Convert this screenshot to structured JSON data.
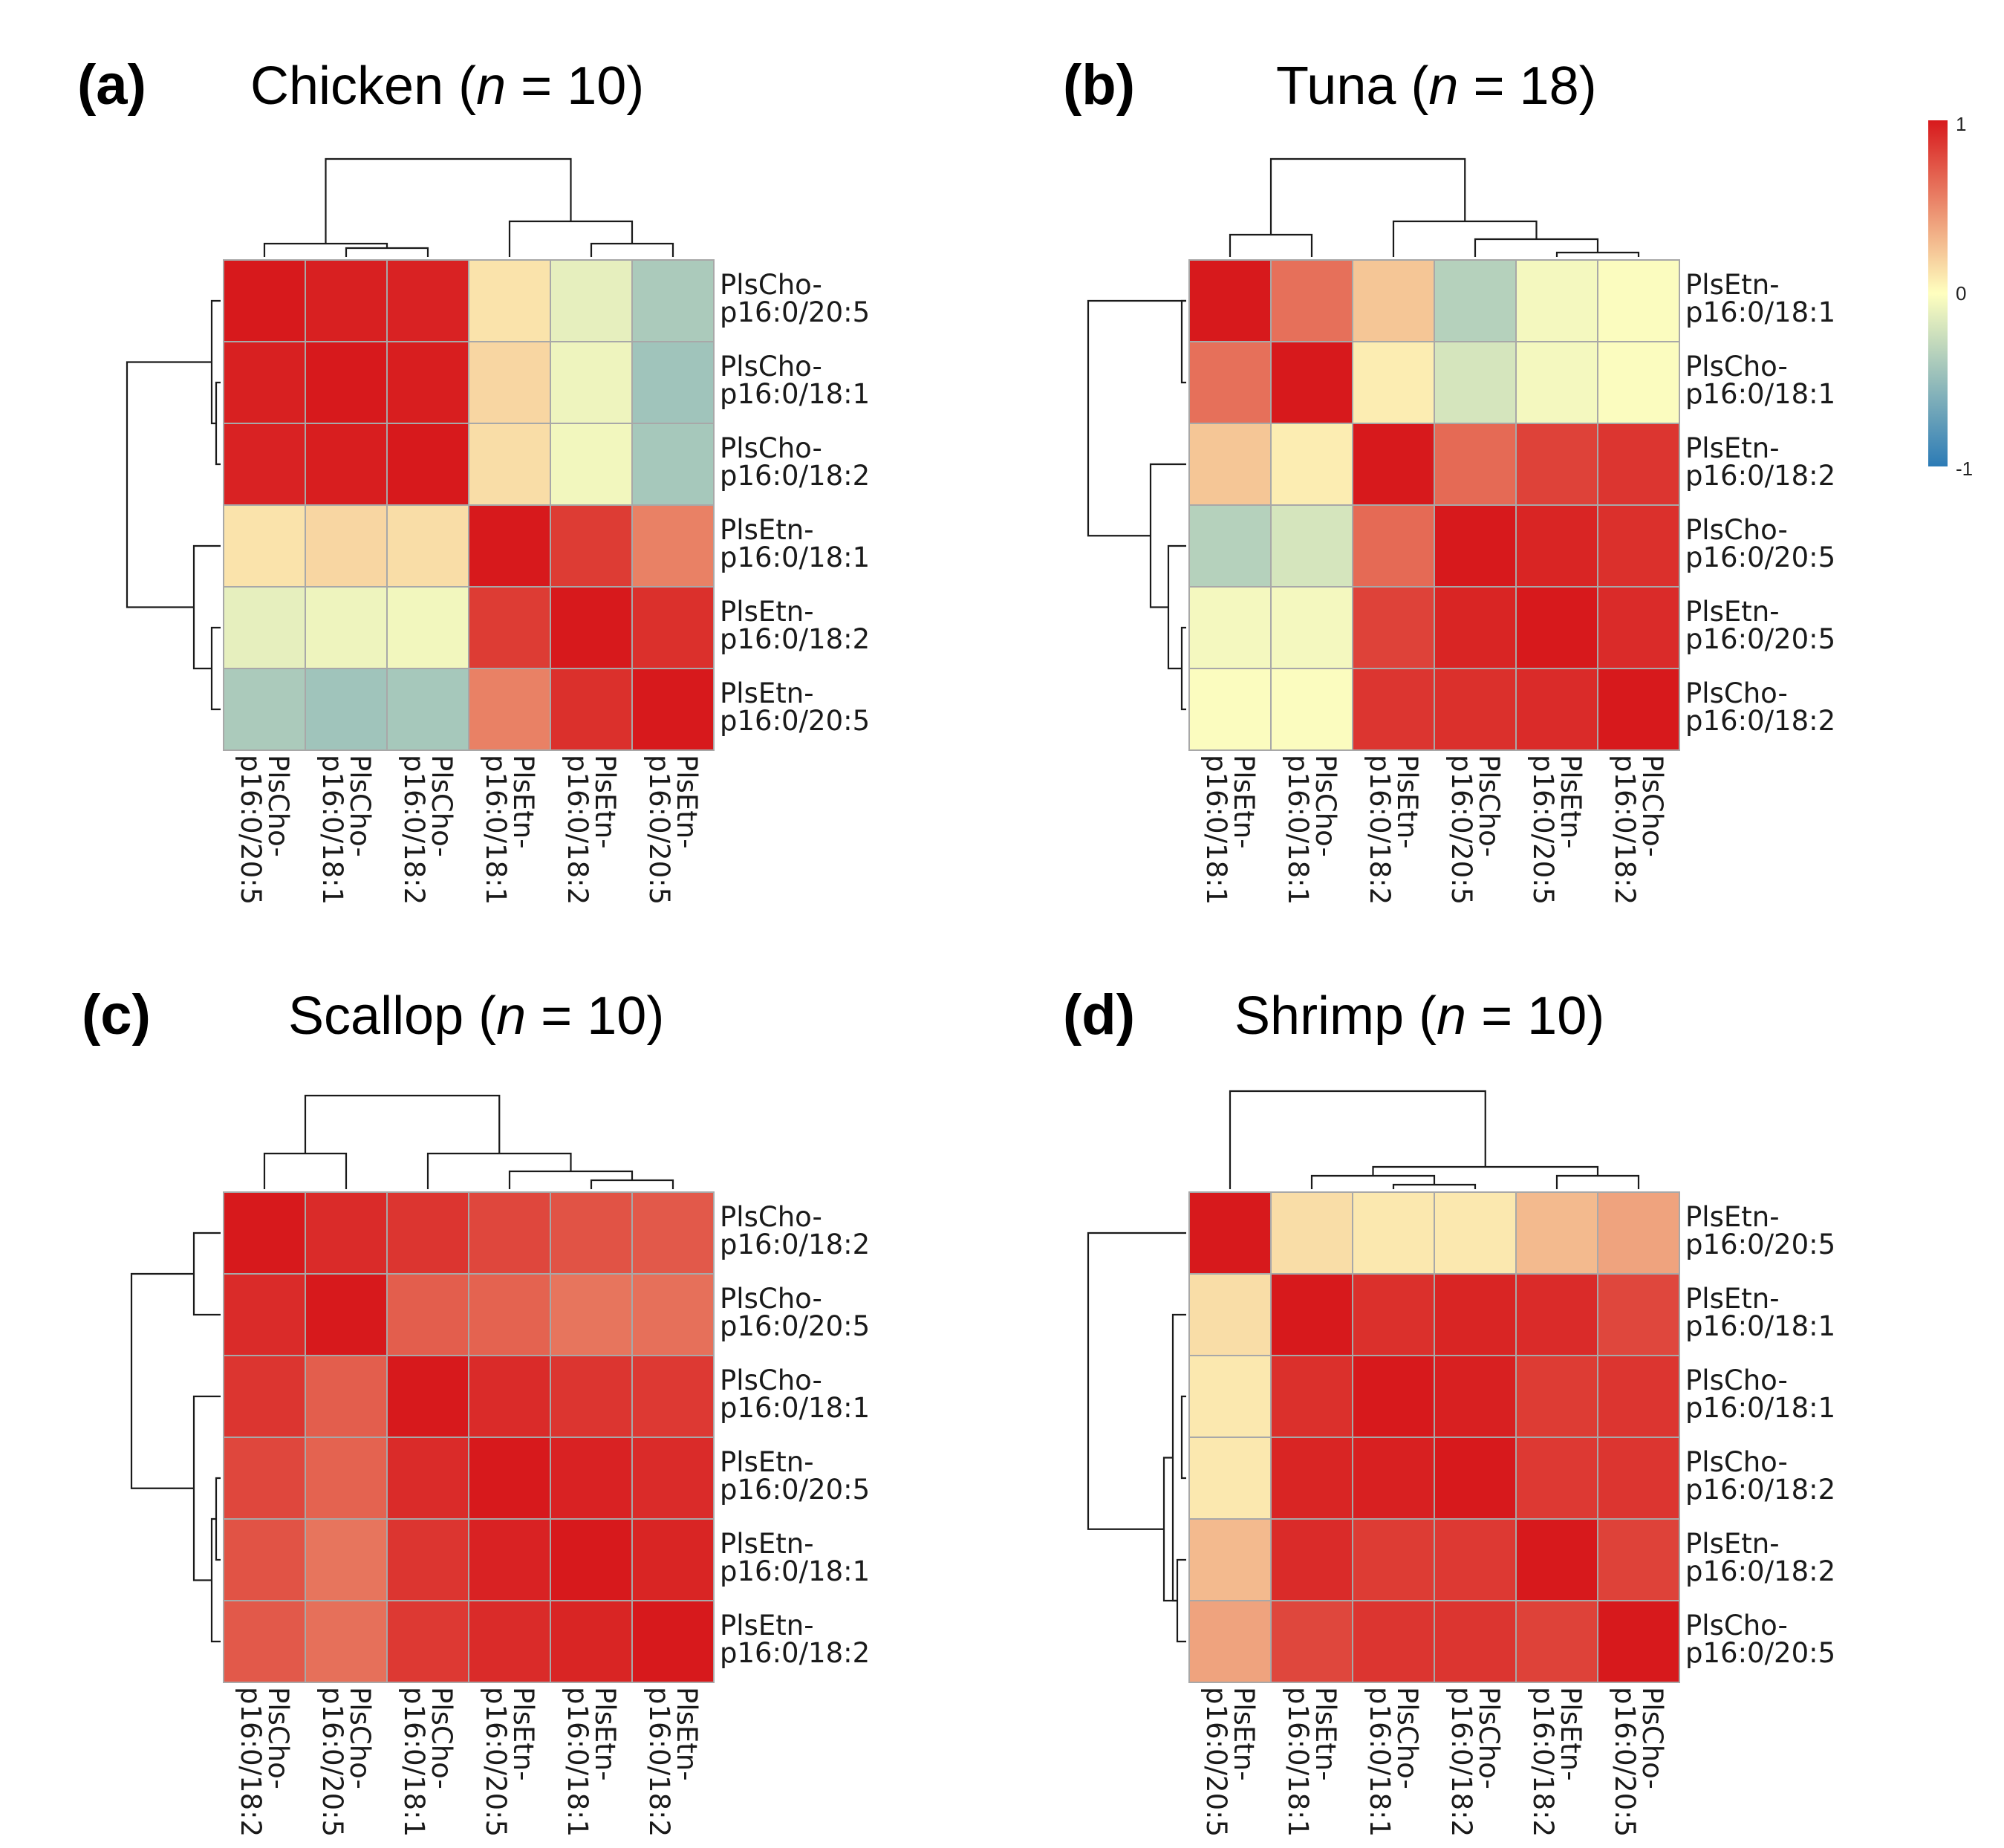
{
  "figure": {
    "colorbar": {
      "ticks": [
        "1",
        "0",
        "-1"
      ],
      "min": -1,
      "max": 1,
      "low_color": "#2c7bb6",
      "mid_color": "#ffffbf",
      "high_color": "#d7191c"
    }
  },
  "chart_data": [
    {
      "type": "heatmap",
      "panel": "(a)",
      "title": {
        "species": "Chicken",
        "n_prefix": " (",
        "n_italic": "n",
        "n_suffix": " = 10)"
      },
      "row_labels": [
        [
          "PlsCho-",
          "p16:0/20:5"
        ],
        [
          "PlsCho-",
          "p16:0/18:1"
        ],
        [
          "PlsCho-",
          "p16:0/18:2"
        ],
        [
          "PlsEtn-",
          "p16:0/18:1"
        ],
        [
          "PlsEtn-",
          "p16:0/18:2"
        ],
        [
          "PlsEtn-",
          "p16:0/20:5"
        ]
      ],
      "col_labels": [
        [
          "PlsCho-",
          "p16:0/20:5"
        ],
        [
          "PlsCho-",
          "p16:0/18:1"
        ],
        [
          "PlsCho-",
          "p16:0/18:2"
        ],
        [
          "PlsEtn-",
          "p16:0/18:1"
        ],
        [
          "PlsEtn-",
          "p16:0/18:2"
        ],
        [
          "PlsEtn-",
          "p16:0/20:5"
        ]
      ],
      "values": [
        [
          1.0,
          0.97,
          0.96,
          0.12,
          -0.12,
          -0.4
        ],
        [
          0.97,
          1.0,
          0.98,
          0.18,
          -0.08,
          -0.45
        ],
        [
          0.96,
          0.98,
          1.0,
          0.15,
          -0.06,
          -0.42
        ],
        [
          0.12,
          0.18,
          0.15,
          1.0,
          0.85,
          0.55
        ],
        [
          -0.12,
          -0.08,
          -0.06,
          0.85,
          1.0,
          0.9
        ],
        [
          -0.4,
          -0.45,
          -0.42,
          0.55,
          0.9,
          1.0
        ]
      ]
    },
    {
      "type": "heatmap",
      "panel": "(b)",
      "title": {
        "species": "Tuna",
        "n_prefix": " (",
        "n_italic": "n",
        "n_suffix": " = 18)"
      },
      "row_labels": [
        [
          "PlsEtn-",
          "p16:0/18:1"
        ],
        [
          "PlsCho-",
          "p16:0/18:1"
        ],
        [
          "PlsEtn-",
          "p16:0/18:2"
        ],
        [
          "PlsCho-",
          "p16:0/20:5"
        ],
        [
          "PlsEtn-",
          "p16:0/20:5"
        ],
        [
          "PlsCho-",
          "p16:0/18:2"
        ]
      ],
      "col_labels": [
        [
          "PlsEtn-",
          "p16:0/18:1"
        ],
        [
          "PlsCho-",
          "p16:0/18:1"
        ],
        [
          "PlsEtn-",
          "p16:0/18:2"
        ],
        [
          "PlsCho-",
          "p16:0/20:5"
        ],
        [
          "PlsEtn-",
          "p16:0/20:5"
        ],
        [
          "PlsCho-",
          "p16:0/18:2"
        ]
      ],
      "values": [
        [
          1.0,
          0.62,
          0.25,
          -0.35,
          -0.05,
          -0.02
        ],
        [
          0.62,
          1.0,
          0.08,
          -0.2,
          -0.05,
          -0.02
        ],
        [
          0.25,
          0.08,
          1.0,
          0.65,
          0.82,
          0.88
        ],
        [
          -0.35,
          -0.2,
          0.65,
          1.0,
          0.95,
          0.9
        ],
        [
          -0.05,
          -0.05,
          0.82,
          0.95,
          1.0,
          0.92
        ],
        [
          -0.02,
          -0.02,
          0.88,
          0.9,
          0.92,
          1.0
        ]
      ]
    },
    {
      "type": "heatmap",
      "panel": "(c)",
      "title": {
        "species": "Scallop",
        "n_prefix": " (",
        "n_italic": "n",
        "n_suffix": " = 10)"
      },
      "row_labels": [
        [
          "PlsCho-",
          "p16:0/18:2"
        ],
        [
          "PlsCho-",
          "p16:0/20:5"
        ],
        [
          "PlsCho-",
          "p16:0/18:1"
        ],
        [
          "PlsEtn-",
          "p16:0/20:5"
        ],
        [
          "PlsEtn-",
          "p16:0/18:1"
        ],
        [
          "PlsEtn-",
          "p16:0/18:2"
        ]
      ],
      "col_labels": [
        [
          "PlsCho-",
          "p16:0/18:2"
        ],
        [
          "PlsCho-",
          "p16:0/20:5"
        ],
        [
          "PlsCho-",
          "p16:0/18:1"
        ],
        [
          "PlsEtn-",
          "p16:0/20:5"
        ],
        [
          "PlsEtn-",
          "p16:0/18:1"
        ],
        [
          "PlsEtn-",
          "p16:0/18:2"
        ]
      ],
      "values": [
        [
          1.0,
          0.92,
          0.88,
          0.8,
          0.75,
          0.72
        ],
        [
          0.92,
          1.0,
          0.7,
          0.68,
          0.6,
          0.62
        ],
        [
          0.88,
          0.7,
          1.0,
          0.92,
          0.88,
          0.86
        ],
        [
          0.8,
          0.68,
          0.92,
          1.0,
          0.96,
          0.92
        ],
        [
          0.75,
          0.6,
          0.88,
          0.96,
          1.0,
          0.95
        ],
        [
          0.72,
          0.62,
          0.86,
          0.92,
          0.95,
          1.0
        ]
      ]
    },
    {
      "type": "heatmap",
      "panel": "(d)",
      "title": {
        "species": "Shrimp",
        "n_prefix": " (",
        "n_italic": "n",
        "n_suffix": " = 10)"
      },
      "row_labels": [
        [
          "PlsEtn-",
          "p16:0/20:5"
        ],
        [
          "PlsEtn-",
          "p16:0/18:1"
        ],
        [
          "PlsCho-",
          "p16:0/18:1"
        ],
        [
          "PlsCho-",
          "p16:0/18:2"
        ],
        [
          "PlsEtn-",
          "p16:0/18:2"
        ],
        [
          "PlsCho-",
          "p16:0/20:5"
        ]
      ],
      "col_labels": [
        [
          "PlsEtn-",
          "p16:0/20:5"
        ],
        [
          "PlsEtn-",
          "p16:0/18:1"
        ],
        [
          "PlsCho-",
          "p16:0/18:1"
        ],
        [
          "PlsCho-",
          "p16:0/18:2"
        ],
        [
          "PlsEtn-",
          "p16:0/18:2"
        ],
        [
          "PlsCho-",
          "p16:0/20:5"
        ]
      ],
      "values": [
        [
          1.0,
          0.15,
          0.1,
          0.1,
          0.3,
          0.4
        ],
        [
          0.15,
          1.0,
          0.9,
          0.95,
          0.92,
          0.8
        ],
        [
          0.1,
          0.9,
          1.0,
          0.97,
          0.85,
          0.88
        ],
        [
          0.1,
          0.95,
          0.97,
          1.0,
          0.86,
          0.88
        ],
        [
          0.3,
          0.92,
          0.85,
          0.86,
          1.0,
          0.82
        ],
        [
          0.4,
          0.8,
          0.88,
          0.88,
          0.82,
          1.0
        ]
      ]
    }
  ]
}
